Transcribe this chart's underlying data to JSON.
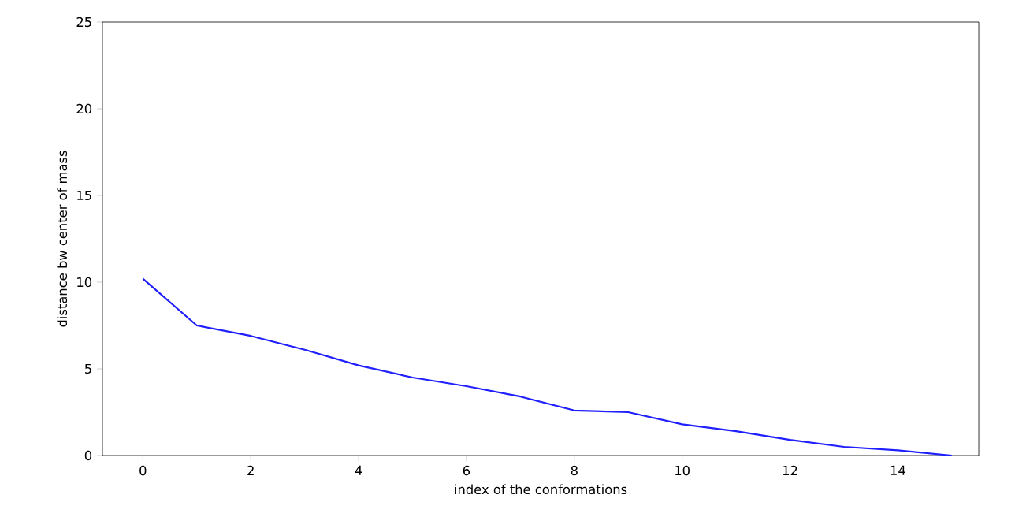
{
  "chart_data": {
    "type": "line",
    "xlabel": "index of the conformations",
    "ylabel": "distance bw center of mass",
    "x": [
      0,
      1,
      2,
      3,
      4,
      5,
      6,
      7,
      8,
      9,
      10,
      11,
      12,
      13,
      14,
      15
    ],
    "series": [
      {
        "color": "#2020ff",
        "values": [
          10.2,
          7.5,
          6.9,
          6.1,
          5.2,
          4.5,
          4.0,
          3.4,
          2.6,
          2.5,
          1.8,
          1.4,
          0.9,
          0.5,
          0.3,
          0.0
        ]
      }
    ],
    "xlim": [
      -0.75,
      15.5
    ],
    "ylim": [
      0,
      25
    ],
    "xticks": [
      0,
      2,
      4,
      6,
      8,
      10,
      12,
      14
    ],
    "yticks": [
      0,
      5,
      10,
      15,
      20,
      25
    ],
    "grid": false,
    "marker": "none",
    "line_style": "solid"
  }
}
